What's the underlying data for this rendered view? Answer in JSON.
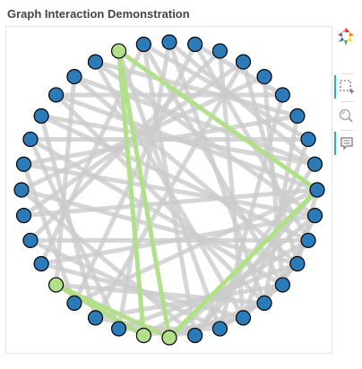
{
  "title": "Graph Interaction Demonstration",
  "colors": {
    "node_default": "#2b7bb9",
    "node_highlight": "#b2df8a",
    "edge_default": "#cccccc",
    "edge_highlight": "#b2df8a",
    "node_stroke": "#000000",
    "toolbar_active": "#26aae1"
  },
  "toolbar": {
    "logo": "bokeh-logo-icon",
    "tools": [
      {
        "name": "box-select-icon",
        "active": true
      },
      {
        "name": "wheel-zoom-icon",
        "active": false
      },
      {
        "name": "hover-icon",
        "active": true
      }
    ]
  },
  "graph": {
    "layout": "circle",
    "node_count": 36,
    "highlighted_nodes": [
      9,
      10,
      14,
      25
    ],
    "edges": [
      [
        0,
        3
      ],
      [
        0,
        8
      ],
      [
        0,
        13
      ],
      [
        0,
        17
      ],
      [
        0,
        22
      ],
      [
        1,
        4
      ],
      [
        1,
        9
      ],
      [
        1,
        15
      ],
      [
        1,
        19
      ],
      [
        1,
        24
      ],
      [
        2,
        5
      ],
      [
        2,
        10
      ],
      [
        2,
        16
      ],
      [
        2,
        21
      ],
      [
        2,
        28
      ],
      [
        3,
        6
      ],
      [
        3,
        11
      ],
      [
        3,
        18
      ],
      [
        3,
        23
      ],
      [
        3,
        30
      ],
      [
        4,
        7
      ],
      [
        4,
        12
      ],
      [
        4,
        20
      ],
      [
        4,
        26
      ],
      [
        4,
        31
      ],
      [
        5,
        9
      ],
      [
        5,
        14
      ],
      [
        5,
        22
      ],
      [
        5,
        27
      ],
      [
        5,
        33
      ],
      [
        6,
        10
      ],
      [
        6,
        15
      ],
      [
        6,
        24
      ],
      [
        6,
        29
      ],
      [
        6,
        34
      ],
      [
        7,
        11
      ],
      [
        7,
        16
      ],
      [
        7,
        25
      ],
      [
        7,
        32
      ],
      [
        8,
        12
      ],
      [
        8,
        18
      ],
      [
        8,
        26
      ],
      [
        8,
        35
      ],
      [
        0,
        9
      ],
      [
        0,
        25
      ],
      [
        9,
        14
      ],
      [
        9,
        25
      ],
      [
        10,
        25
      ],
      [
        10,
        14
      ],
      [
        11,
        20
      ],
      [
        11,
        27
      ],
      [
        12,
        21
      ],
      [
        12,
        30
      ],
      [
        13,
        19
      ],
      [
        13,
        28
      ],
      [
        14,
        23
      ],
      [
        15,
        26
      ],
      [
        16,
        29
      ],
      [
        17,
        30
      ],
      [
        18,
        31
      ],
      [
        19,
        33
      ],
      [
        20,
        34
      ],
      [
        21,
        35
      ],
      [
        22,
        32
      ],
      [
        23,
        35
      ],
      [
        24,
        33
      ],
      [
        26,
        34
      ],
      [
        27,
        35
      ],
      [
        28,
        32
      ]
    ],
    "highlighted_edges": [
      [
        9,
        14
      ],
      [
        9,
        25
      ],
      [
        10,
        25
      ],
      [
        10,
        14
      ],
      [
        0,
        9
      ],
      [
        0,
        25
      ]
    ]
  }
}
